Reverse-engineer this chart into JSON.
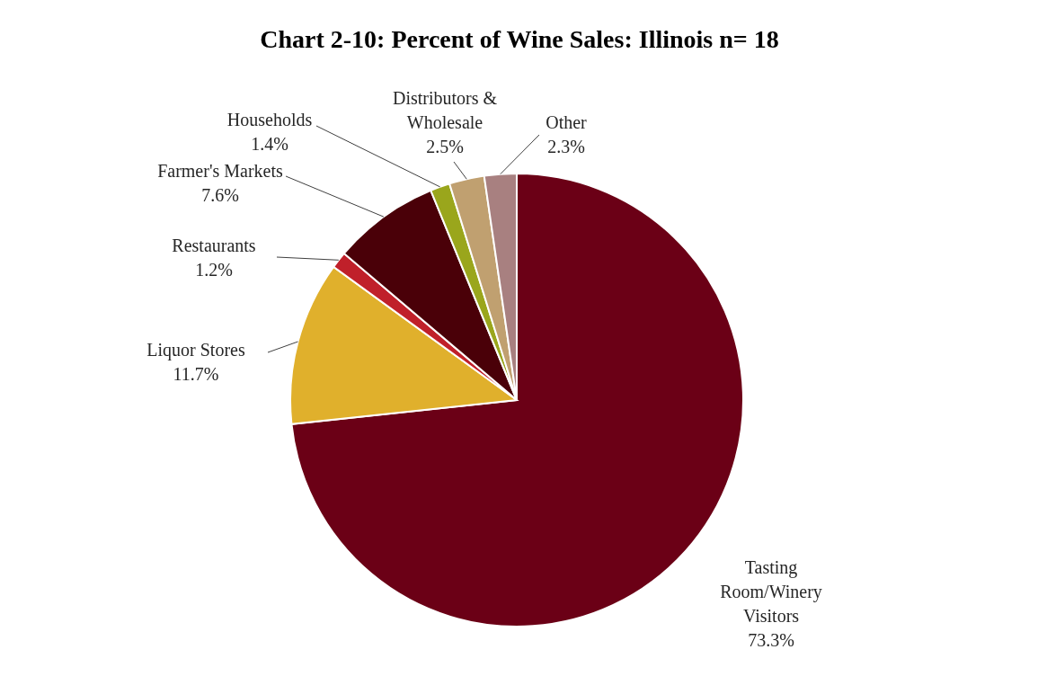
{
  "chart_data": {
    "type": "pie",
    "title": "Chart 2-10: Percent of Wine Sales: Illinois n= 18",
    "categories": [
      "Tasting Room/Winery Visitors",
      "Liquor Stores",
      "Restaurants",
      "Farmer's Markets",
      "Households",
      "Distributors & Wholesale",
      "Other"
    ],
    "values": [
      73.3,
      11.7,
      1.2,
      7.6,
      1.4,
      2.5,
      2.3
    ],
    "value_labels": [
      "73.3%",
      "11.7%",
      "1.2%",
      "7.6%",
      "1.4%",
      "2.5%",
      "2.3%"
    ],
    "colors": [
      "#6b0016",
      "#e0b02c",
      "#c0202a",
      "#4a0008",
      "#9aa61c",
      "#c0a070",
      "#a88080"
    ]
  }
}
